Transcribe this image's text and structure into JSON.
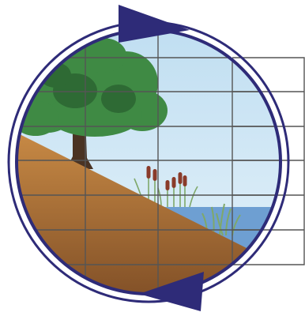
{
  "figure": {
    "scene": "riparian-cross-section",
    "icons": [
      "tree-icon",
      "cattail-icon",
      "aquatic-grass-icon",
      "cycle-arrow-icon"
    ],
    "colors": {
      "ring": "#2e2b78",
      "arrow": "#2e2b78",
      "sky_top": "#bcdcf0",
      "sky_bottom": "#e8f4fb",
      "soil_top": "#c88a45",
      "soil_bottom": "#7a4a24",
      "foliage": "#3f8a44",
      "foliage_dark": "#2e6a34",
      "trunk": "#4a3323",
      "water": "#6e9fd2",
      "reed": "#7fa86a",
      "cattail_head": "#8a3b2a",
      "grid_line": "#555555"
    },
    "grid": {
      "rows": 7,
      "columns": 4
    }
  }
}
